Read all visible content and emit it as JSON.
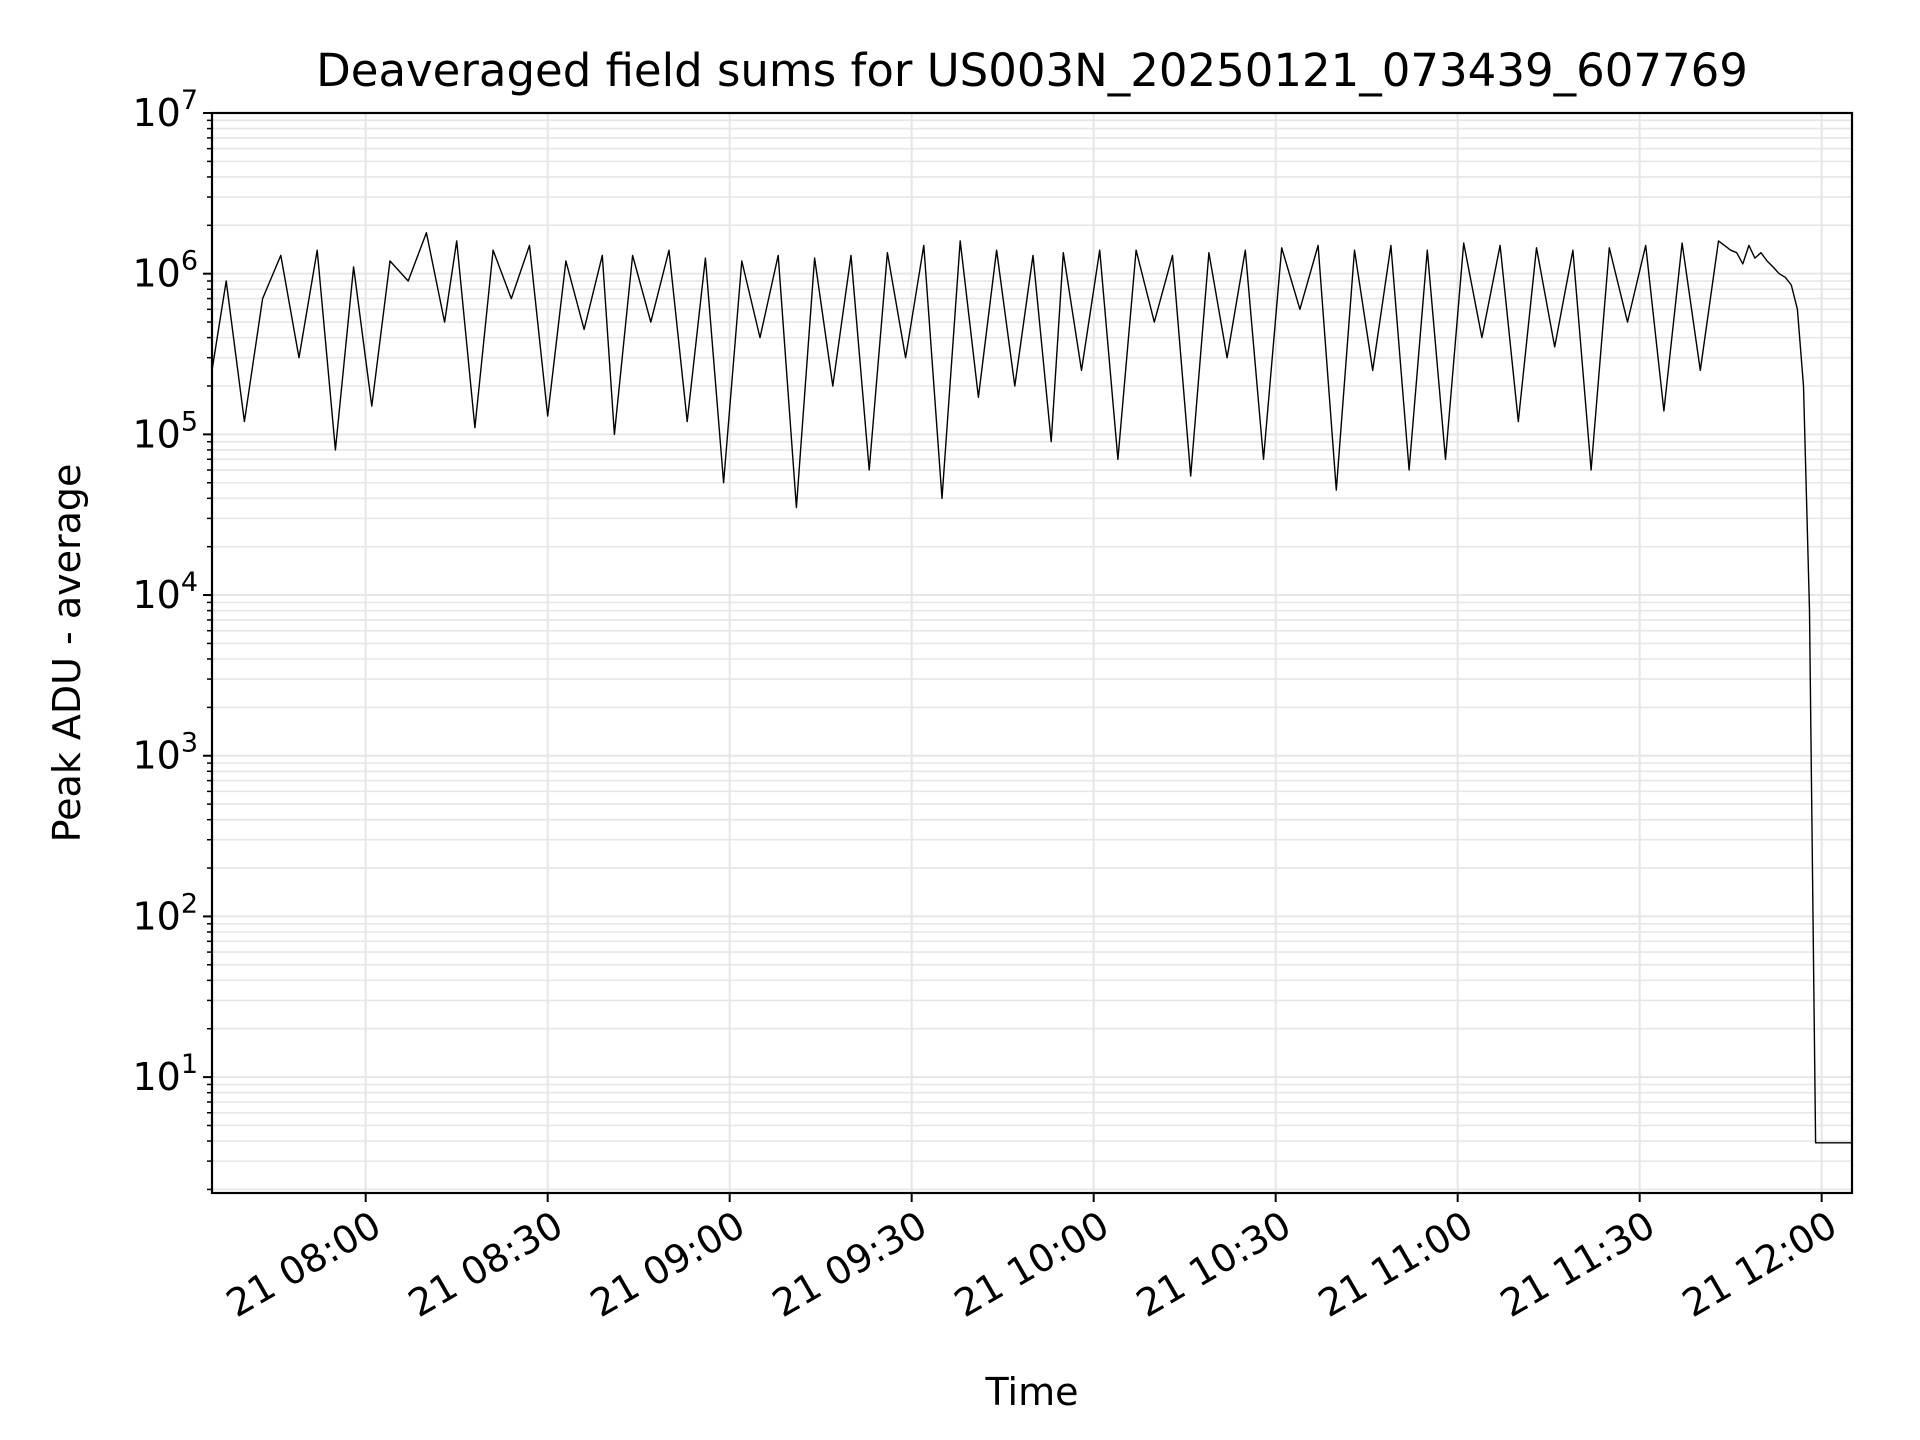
{
  "chart_data": {
    "type": "line",
    "title": "Deaveraged field sums for US003N_20250121_073439_607769",
    "xlabel": "Time",
    "ylabel": "Peak ADU - average",
    "yscale": "log",
    "ylim": [
      1.9,
      10000000
    ],
    "xlim": [
      "2025-01-21 07:34:40",
      "2025-01-21 12:05:00"
    ],
    "grid": true,
    "line_color": "#000000",
    "grid_color": "#e6e6e6",
    "x_ticks": [
      "21 08:00",
      "21 08:30",
      "21 09:00",
      "21 09:30",
      "21 10:00",
      "21 10:30",
      "21 11:00",
      "21 11:30",
      "21 12:00"
    ],
    "y_ticks": [
      {
        "base": "10",
        "exp": "1",
        "value": 10
      },
      {
        "base": "10",
        "exp": "2",
        "value": 100
      },
      {
        "base": "10",
        "exp": "3",
        "value": 1000
      },
      {
        "base": "10",
        "exp": "4",
        "value": 10000
      },
      {
        "base": "10",
        "exp": "5",
        "value": 100000
      },
      {
        "base": "10",
        "exp": "6",
        "value": 1000000
      },
      {
        "base": "10",
        "exp": "7",
        "value": 10000000
      }
    ],
    "series": [
      {
        "x": [
          "2025-01-21 07:34:40",
          "2025-01-21 07:37:00",
          "2025-01-21 07:40:00",
          "2025-01-21 07:43:00",
          "2025-01-21 07:46:00",
          "2025-01-21 07:49:00",
          "2025-01-21 07:52:00",
          "2025-01-21 07:55:00",
          "2025-01-21 07:58:00",
          "2025-01-21 08:01:00",
          "2025-01-21 08:04:00",
          "2025-01-21 08:07:00",
          "2025-01-21 08:10:00",
          "2025-01-21 08:13:00",
          "2025-01-21 08:15:00",
          "2025-01-21 08:18:00",
          "2025-01-21 08:21:00",
          "2025-01-21 08:24:00",
          "2025-01-21 08:27:00",
          "2025-01-21 08:30:00",
          "2025-01-21 08:33:00",
          "2025-01-21 08:36:00",
          "2025-01-21 08:39:00",
          "2025-01-21 08:41:00",
          "2025-01-21 08:44:00",
          "2025-01-21 08:47:00",
          "2025-01-21 08:50:00",
          "2025-01-21 08:53:00",
          "2025-01-21 08:56:00",
          "2025-01-21 08:59:00",
          "2025-01-21 09:02:00",
          "2025-01-21 09:05:00",
          "2025-01-21 09:08:00",
          "2025-01-21 09:11:00",
          "2025-01-21 09:14:00",
          "2025-01-21 09:17:00",
          "2025-01-21 09:20:00",
          "2025-01-21 09:23:00",
          "2025-01-21 09:26:00",
          "2025-01-21 09:29:00",
          "2025-01-21 09:32:00",
          "2025-01-21 09:35:00",
          "2025-01-21 09:38:00",
          "2025-01-21 09:41:00",
          "2025-01-21 09:44:00",
          "2025-01-21 09:47:00",
          "2025-01-21 09:50:00",
          "2025-01-21 09:53:00",
          "2025-01-21 09:55:00",
          "2025-01-21 09:58:00",
          "2025-01-21 10:01:00",
          "2025-01-21 10:04:00",
          "2025-01-21 10:07:00",
          "2025-01-21 10:10:00",
          "2025-01-21 10:13:00",
          "2025-01-21 10:16:00",
          "2025-01-21 10:19:00",
          "2025-01-21 10:22:00",
          "2025-01-21 10:25:00",
          "2025-01-21 10:28:00",
          "2025-01-21 10:31:00",
          "2025-01-21 10:34:00",
          "2025-01-21 10:37:00",
          "2025-01-21 10:40:00",
          "2025-01-21 10:43:00",
          "2025-01-21 10:46:00",
          "2025-01-21 10:49:00",
          "2025-01-21 10:52:00",
          "2025-01-21 10:55:00",
          "2025-01-21 10:58:00",
          "2025-01-21 11:01:00",
          "2025-01-21 11:04:00",
          "2025-01-21 11:07:00",
          "2025-01-21 11:10:00",
          "2025-01-21 11:13:00",
          "2025-01-21 11:16:00",
          "2025-01-21 11:19:00",
          "2025-01-21 11:22:00",
          "2025-01-21 11:25:00",
          "2025-01-21 11:28:00",
          "2025-01-21 11:31:00",
          "2025-01-21 11:34:00",
          "2025-01-21 11:37:00",
          "2025-01-21 11:40:00",
          "2025-01-21 11:43:00",
          "2025-01-21 11:45:00",
          "2025-01-21 11:46:00",
          "2025-01-21 11:47:00",
          "2025-01-21 11:48:00",
          "2025-01-21 11:49:00",
          "2025-01-21 11:50:00",
          "2025-01-21 11:51:00",
          "2025-01-21 11:52:00",
          "2025-01-21 11:53:00",
          "2025-01-21 11:54:00",
          "2025-01-21 11:55:00",
          "2025-01-21 11:56:00",
          "2025-01-21 11:57:00",
          "2025-01-21 11:58:00",
          "2025-01-21 11:59:00",
          "2025-01-21 12:00:00",
          "2025-01-21 12:01:00",
          "2025-01-21 12:02:00",
          "2025-01-21 12:03:00",
          "2025-01-21 12:05:00"
        ],
        "y": [
          250000,
          900000,
          120000,
          700000,
          1300000,
          300000,
          1400000,
          80000,
          1100000,
          150000,
          1200000,
          900000,
          1800000,
          500000,
          1600000,
          110000,
          1400000,
          700000,
          1500000,
          130000,
          1200000,
          450000,
          1300000,
          100000,
          1300000,
          500000,
          1400000,
          120000,
          1250000,
          50000,
          1200000,
          400000,
          1300000,
          35000,
          1250000,
          200000,
          1300000,
          60000,
          1350000,
          300000,
          1500000,
          40000,
          1600000,
          170000,
          1400000,
          200000,
          1300000,
          90000,
          1350000,
          250000,
          1400000,
          70000,
          1400000,
          500000,
          1300000,
          55000,
          1350000,
          300000,
          1400000,
          70000,
          1450000,
          600000,
          1500000,
          45000,
          1400000,
          250000,
          1500000,
          60000,
          1400000,
          70000,
          1550000,
          400000,
          1500000,
          120000,
          1450000,
          350000,
          1400000,
          60000,
          1450000,
          500000,
          1500000,
          140000,
          1550000,
          250000,
          1600000,
          1400000,
          1350000,
          1150000,
          1500000,
          1250000,
          1350000,
          1200000,
          1100000,
          1000000,
          950000,
          850000,
          600000,
          200000,
          8000,
          3.9,
          3.9,
          3.9,
          3.9,
          3.9,
          3.9
        ]
      }
    ]
  }
}
